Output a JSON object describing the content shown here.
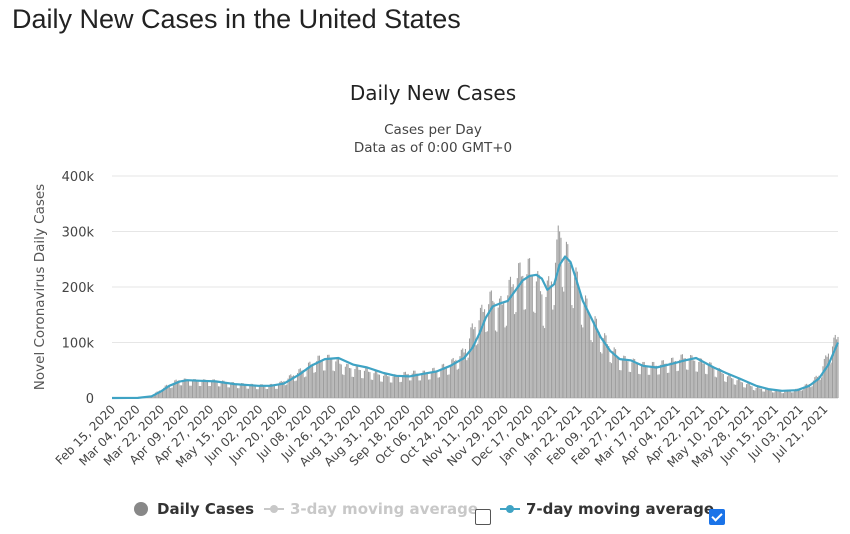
{
  "page": {
    "title": "Daily New Cases in the United States"
  },
  "legend": {
    "daily_label": "Daily Cases",
    "ma3_label": "3-day moving average",
    "ma7_label": "7-day moving average",
    "ma3_checked": false,
    "ma7_checked": true
  },
  "colors": {
    "bars": "#9e9e9e",
    "ma7": "#3fa3c4",
    "grid": "#e6e6e6",
    "ma3_disabled": "#c8c8c8"
  },
  "chart_data": {
    "type": "bar",
    "title": "Daily New Cases",
    "subtitle_lines": [
      "Cases per Day",
      "Data as of 0:00 GMT+0"
    ],
    "ylabel": "Novel Coronavirus Daily Cases",
    "ylim": [
      0,
      400000
    ],
    "yticks": [
      0,
      100000,
      200000,
      300000,
      400000
    ],
    "ytick_labels": [
      "0",
      "100k",
      "200k",
      "300k",
      "400k"
    ],
    "x_start": "2020-02-15",
    "x_end": "2021-07-31",
    "xtick_labels": [
      "Feb 15, 2020",
      "Mar 04, 2020",
      "Mar 22, 2020",
      "Apr 09, 2020",
      "Apr 27, 2020",
      "May 15, 2020",
      "Jun 02, 2020",
      "Jun 20, 2020",
      "Jul 08, 2020",
      "Jul 26, 2020",
      "Aug 13, 2020",
      "Aug 31, 2020",
      "Sep 18, 2020",
      "Oct 06, 2020",
      "Oct 24, 2020",
      "Nov 11, 2020",
      "Nov 29, 2020",
      "Dec 17, 2020",
      "Jan 04, 2021",
      "Jan 22, 2021",
      "Feb 09, 2021",
      "Feb 27, 2021",
      "Mar 17, 2021",
      "Apr 04, 2021",
      "Apr 22, 2021",
      "May 10, 2021",
      "May 28, 2021",
      "Jun 15, 2021",
      "Jul 03, 2021",
      "Jul 21, 2021"
    ],
    "series": [
      {
        "name": "Daily Cases",
        "kind": "bar",
        "x": [
          "2020-02-15",
          "2020-03-01",
          "2020-03-10",
          "2020-03-15",
          "2020-03-20",
          "2020-03-25",
          "2020-03-30",
          "2020-04-04",
          "2020-04-10",
          "2020-04-20",
          "2020-05-01",
          "2020-05-15",
          "2020-06-01",
          "2020-06-15",
          "2020-06-25",
          "2020-07-05",
          "2020-07-15",
          "2020-07-25",
          "2020-08-05",
          "2020-08-20",
          "2020-09-01",
          "2020-09-10",
          "2020-09-20",
          "2020-10-01",
          "2020-10-10",
          "2020-10-20",
          "2020-10-30",
          "2020-11-05",
          "2020-11-10",
          "2020-11-15",
          "2020-11-20",
          "2020-11-25",
          "2020-12-01",
          "2020-12-07",
          "2020-12-12",
          "2020-12-17",
          "2020-12-22",
          "2020-12-28",
          "2021-01-02",
          "2021-01-06",
          "2021-01-08",
          "2021-01-12",
          "2021-01-16",
          "2021-01-20",
          "2021-01-26",
          "2021-02-01",
          "2021-02-07",
          "2021-02-14",
          "2021-02-21",
          "2021-03-01",
          "2021-03-10",
          "2021-03-20",
          "2021-04-01",
          "2021-04-10",
          "2021-04-20",
          "2021-05-01",
          "2021-05-10",
          "2021-05-20",
          "2021-06-01",
          "2021-06-10",
          "2021-06-20",
          "2021-07-01",
          "2021-07-10",
          "2021-07-17",
          "2021-07-24",
          "2021-07-31"
        ],
        "y": [
          0,
          100,
          1000,
          4000,
          12000,
          20000,
          26000,
          32000,
          31000,
          30000,
          30000,
          25000,
          22000,
          23000,
          38000,
          52000,
          68000,
          70000,
          55000,
          48000,
          40000,
          38000,
          44000,
          44000,
          50000,
          60000,
          82000,
          120000,
          140000,
          165000,
          175000,
          160000,
          185000,
          215000,
          220000,
          225000,
          210000,
          175000,
          210000,
          255000,
          300000,
          255000,
          240000,
          210000,
          170000,
          140000,
          115000,
          90000,
          70000,
          65000,
          58000,
          58000,
          65000,
          72000,
          65000,
          55000,
          40000,
          30000,
          18000,
          15000,
          12000,
          15000,
          25000,
          40000,
          80000,
          110000
        ]
      },
      {
        "name": "7-day moving average",
        "kind": "line",
        "x": [
          "2020-02-15",
          "2020-03-05",
          "2020-03-15",
          "2020-03-22",
          "2020-03-28",
          "2020-04-05",
          "2020-04-10",
          "2020-04-20",
          "2020-05-01",
          "2020-05-15",
          "2020-06-01",
          "2020-06-10",
          "2020-06-20",
          "2020-07-01",
          "2020-07-10",
          "2020-07-20",
          "2020-07-30",
          "2020-08-10",
          "2020-08-20",
          "2020-09-01",
          "2020-09-10",
          "2020-09-20",
          "2020-10-01",
          "2020-10-10",
          "2020-10-20",
          "2020-10-30",
          "2020-11-05",
          "2020-11-10",
          "2020-11-15",
          "2020-11-20",
          "2020-11-25",
          "2020-12-01",
          "2020-12-07",
          "2020-12-12",
          "2020-12-17",
          "2020-12-22",
          "2020-12-26",
          "2020-12-30",
          "2021-01-04",
          "2021-01-08",
          "2021-01-12",
          "2021-01-16",
          "2021-01-20",
          "2021-01-25",
          "2021-02-01",
          "2021-02-07",
          "2021-02-14",
          "2021-02-21",
          "2021-03-01",
          "2021-03-10",
          "2021-03-20",
          "2021-04-01",
          "2021-04-10",
          "2021-04-18",
          "2021-05-01",
          "2021-05-10",
          "2021-05-20",
          "2021-06-01",
          "2021-06-10",
          "2021-06-20",
          "2021-07-01",
          "2021-07-10",
          "2021-07-17",
          "2021-07-24",
          "2021-07-31"
        ],
        "y": [
          0,
          100,
          3000,
          12000,
          22000,
          30000,
          32000,
          31000,
          30000,
          25000,
          22000,
          22000,
          26000,
          42000,
          58000,
          70000,
          72000,
          60000,
          55000,
          45000,
          40000,
          39000,
          44000,
          48000,
          58000,
          72000,
          90000,
          115000,
          145000,
          165000,
          170000,
          175000,
          195000,
          212000,
          220000,
          222000,
          215000,
          195000,
          205000,
          240000,
          255000,
          245000,
          215000,
          175000,
          140000,
          110000,
          85000,
          70000,
          68000,
          58000,
          55000,
          62000,
          68000,
          72000,
          55000,
          45000,
          35000,
          22000,
          16000,
          13000,
          14000,
          22000,
          35000,
          60000,
          100000
        ]
      }
    ]
  }
}
